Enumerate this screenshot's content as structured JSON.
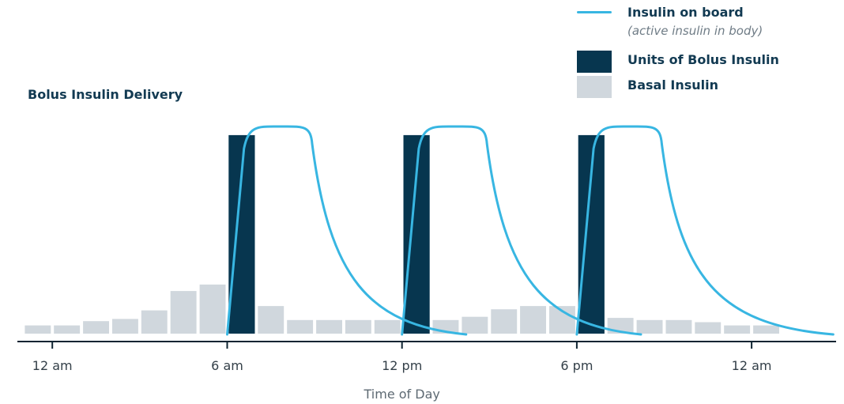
{
  "chart_data": {
    "type": "bar",
    "title": "Bolus Insulin Delivery",
    "xlabel": "Time of Day",
    "ylabel": "",
    "x_ticks": [
      "12 am",
      "6 am",
      "12 pm",
      "6 pm",
      "12 am"
    ],
    "x_tick_hours": [
      0,
      6,
      12,
      18,
      24
    ],
    "xlim_hours": [
      -1.2,
      26.9
    ],
    "ylim": [
      0,
      100
    ],
    "grid": false,
    "legend_position": "top-right",
    "series": [
      {
        "name": "Basal Insulin",
        "kind": "bar",
        "color": "#d0d7dd",
        "bin_hours": 1,
        "start_hours": [
          -1,
          0,
          1,
          2,
          3,
          4,
          5,
          7,
          8,
          9,
          10,
          11,
          13,
          14,
          15,
          16,
          17,
          19,
          20,
          21,
          22,
          23,
          24
        ],
        "values": [
          7.5,
          7.5,
          9.5,
          10.5,
          14.5,
          23.5,
          26.5,
          16.5,
          10,
          10,
          10,
          10,
          10,
          11.5,
          15,
          16.5,
          16.5,
          11,
          10,
          10,
          9,
          7.5,
          7.5
        ]
      },
      {
        "name": "Units of Bolus Insulin",
        "kind": "bar",
        "color": "#07364f",
        "bar_width_hours": 0.9,
        "start_hours": [
          6.05,
          12.05,
          18.05
        ],
        "values": [
          96,
          96,
          96
        ]
      },
      {
        "name": "Insulin on board",
        "sublabel": "(active insulin in body)",
        "kind": "line",
        "color": "#38b6e2",
        "peaks": [
          {
            "bolus_hour": 6,
            "peak_hour": 7.8,
            "peak_value": 100,
            "end_hour": 14.2
          },
          {
            "bolus_hour": 12,
            "peak_hour": 13.8,
            "peak_value": 100,
            "end_hour": 20.2
          },
          {
            "bolus_hour": 18,
            "peak_hour": 19.8,
            "peak_value": 100,
            "end_hour": 26.8
          }
        ]
      }
    ]
  }
}
